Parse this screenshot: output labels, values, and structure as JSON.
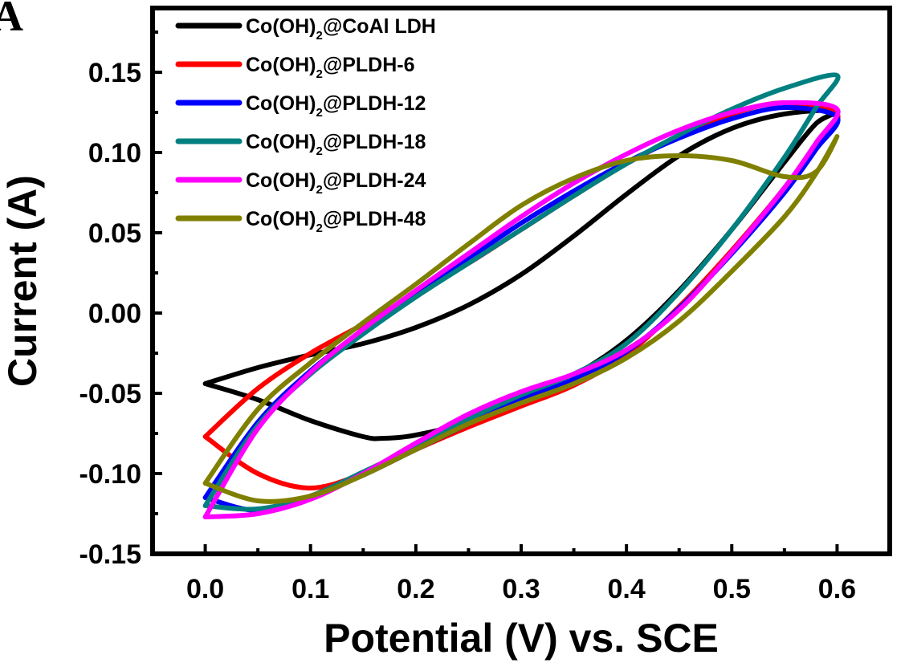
{
  "panel_label": "A",
  "chart_data": {
    "type": "line",
    "xlabel": "Potential (V) vs. SCE",
    "ylabel": "Current (A)",
    "xlim": [
      -0.05,
      0.65
    ],
    "ylim": [
      -0.15,
      0.19
    ],
    "x_ticks": [
      0.0,
      0.1,
      0.2,
      0.3,
      0.4,
      0.5,
      0.6
    ],
    "x_tick_labels": [
      "0.0",
      "0.1",
      "0.2",
      "0.3",
      "0.4",
      "0.5",
      "0.6"
    ],
    "y_ticks": [
      -0.15,
      -0.1,
      -0.05,
      0.0,
      0.05,
      0.1,
      0.15
    ],
    "y_tick_labels": [
      "-0.15",
      "-0.10",
      "-0.05",
      "0.00",
      "0.05",
      "0.10",
      "0.15"
    ],
    "grid": false,
    "legend_position": "top-left",
    "series": [
      {
        "name": "Co(OH)2@CoAl LDH",
        "legend_parts": [
          "Co(OH)",
          "2",
          "@CoAl LDH"
        ],
        "color": "#000000",
        "x": [
          0.0,
          0.05,
          0.1,
          0.15,
          0.2,
          0.25,
          0.3,
          0.35,
          0.4,
          0.45,
          0.5,
          0.55,
          0.6,
          0.58,
          0.55,
          0.5,
          0.45,
          0.4,
          0.35,
          0.3,
          0.25,
          0.2,
          0.17,
          0.15,
          0.1,
          0.05,
          0.0
        ],
        "y": [
          -0.044,
          -0.034,
          -0.026,
          -0.019,
          -0.009,
          0.005,
          0.024,
          0.048,
          0.074,
          0.098,
          0.115,
          0.124,
          0.126,
          0.118,
          0.094,
          0.052,
          0.014,
          -0.017,
          -0.039,
          -0.056,
          -0.068,
          -0.076,
          -0.078,
          -0.077,
          -0.067,
          -0.054,
          -0.044
        ]
      },
      {
        "name": "Co(OH)2@PLDH-6",
        "legend_parts": [
          "Co(OH)",
          "2",
          "@PLDH-6"
        ],
        "color": "#ff0000",
        "x": [
          0.0,
          0.05,
          0.1,
          0.15,
          0.2,
          0.25,
          0.3,
          0.35,
          0.4,
          0.45,
          0.5,
          0.55,
          0.6,
          0.58,
          0.55,
          0.5,
          0.45,
          0.4,
          0.35,
          0.3,
          0.25,
          0.2,
          0.15,
          0.1,
          0.05,
          0.0
        ],
        "y": [
          -0.077,
          -0.047,
          -0.025,
          -0.007,
          0.012,
          0.031,
          0.052,
          0.073,
          0.093,
          0.11,
          0.124,
          0.131,
          0.124,
          0.105,
          0.078,
          0.039,
          0.004,
          -0.026,
          -0.045,
          -0.058,
          -0.071,
          -0.085,
          -0.1,
          -0.109,
          -0.1,
          -0.077
        ]
      },
      {
        "name": "Co(OH)2@PLDH-12",
        "legend_parts": [
          "Co(OH)",
          "2",
          "@PLDH-12"
        ],
        "color": "#0000ff",
        "x": [
          0.0,
          0.05,
          0.1,
          0.15,
          0.2,
          0.25,
          0.3,
          0.35,
          0.4,
          0.45,
          0.5,
          0.55,
          0.6,
          0.58,
          0.55,
          0.5,
          0.45,
          0.4,
          0.35,
          0.3,
          0.25,
          0.2,
          0.15,
          0.1,
          0.05,
          0.0
        ],
        "y": [
          -0.115,
          -0.068,
          -0.036,
          -0.011,
          0.012,
          0.034,
          0.056,
          0.076,
          0.094,
          0.109,
          0.121,
          0.128,
          0.122,
          0.102,
          0.075,
          0.037,
          0.003,
          -0.024,
          -0.041,
          -0.054,
          -0.069,
          -0.085,
          -0.101,
          -0.114,
          -0.123,
          -0.115
        ]
      },
      {
        "name": "Co(OH)2@PLDH-18",
        "legend_parts": [
          "Co(OH)",
          "2",
          "@PLDH-18"
        ],
        "color": "#008080",
        "x": [
          0.0,
          0.05,
          0.1,
          0.15,
          0.2,
          0.25,
          0.3,
          0.35,
          0.4,
          0.45,
          0.5,
          0.55,
          0.6,
          0.58,
          0.55,
          0.5,
          0.45,
          0.4,
          0.35,
          0.3,
          0.25,
          0.2,
          0.15,
          0.1,
          0.05,
          0.0
        ],
        "y": [
          -0.12,
          -0.07,
          -0.038,
          -0.013,
          0.01,
          0.031,
          0.052,
          0.073,
          0.093,
          0.111,
          0.127,
          0.14,
          0.148,
          0.128,
          0.097,
          0.052,
          0.013,
          -0.019,
          -0.038,
          -0.051,
          -0.066,
          -0.083,
          -0.099,
          -0.114,
          -0.122,
          -0.12
        ]
      },
      {
        "name": "Co(OH)2@PLDH-24",
        "legend_parts": [
          "Co(OH)",
          "2",
          "@PLDH-24"
        ],
        "color": "#ff00ff",
        "x": [
          0.0,
          0.05,
          0.1,
          0.15,
          0.2,
          0.25,
          0.3,
          0.35,
          0.4,
          0.45,
          0.5,
          0.55,
          0.6,
          0.58,
          0.55,
          0.5,
          0.45,
          0.4,
          0.35,
          0.3,
          0.25,
          0.2,
          0.15,
          0.1,
          0.05,
          0.0
        ],
        "y": [
          -0.127,
          -0.072,
          -0.037,
          -0.01,
          0.014,
          0.037,
          0.06,
          0.081,
          0.099,
          0.114,
          0.125,
          0.131,
          0.127,
          0.106,
          0.078,
          0.038,
          0.002,
          -0.023,
          -0.038,
          -0.049,
          -0.063,
          -0.081,
          -0.1,
          -0.116,
          -0.125,
          -0.127
        ]
      },
      {
        "name": "Co(OH)2@PLDH-48",
        "legend_parts": [
          "Co(OH)",
          "2",
          "@PLDH-48"
        ],
        "color": "#808000",
        "x": [
          0.0,
          0.05,
          0.1,
          0.15,
          0.2,
          0.25,
          0.3,
          0.35,
          0.4,
          0.45,
          0.5,
          0.55,
          0.58,
          0.6,
          0.58,
          0.55,
          0.5,
          0.45,
          0.4,
          0.35,
          0.3,
          0.25,
          0.2,
          0.15,
          0.1,
          0.05,
          0.0
        ],
        "y": [
          -0.106,
          -0.06,
          -0.031,
          -0.006,
          0.018,
          0.043,
          0.067,
          0.084,
          0.095,
          0.098,
          0.095,
          0.085,
          0.088,
          0.11,
          0.087,
          0.06,
          0.026,
          -0.005,
          -0.028,
          -0.044,
          -0.056,
          -0.069,
          -0.085,
          -0.101,
          -0.114,
          -0.117,
          -0.106
        ]
      }
    ]
  }
}
